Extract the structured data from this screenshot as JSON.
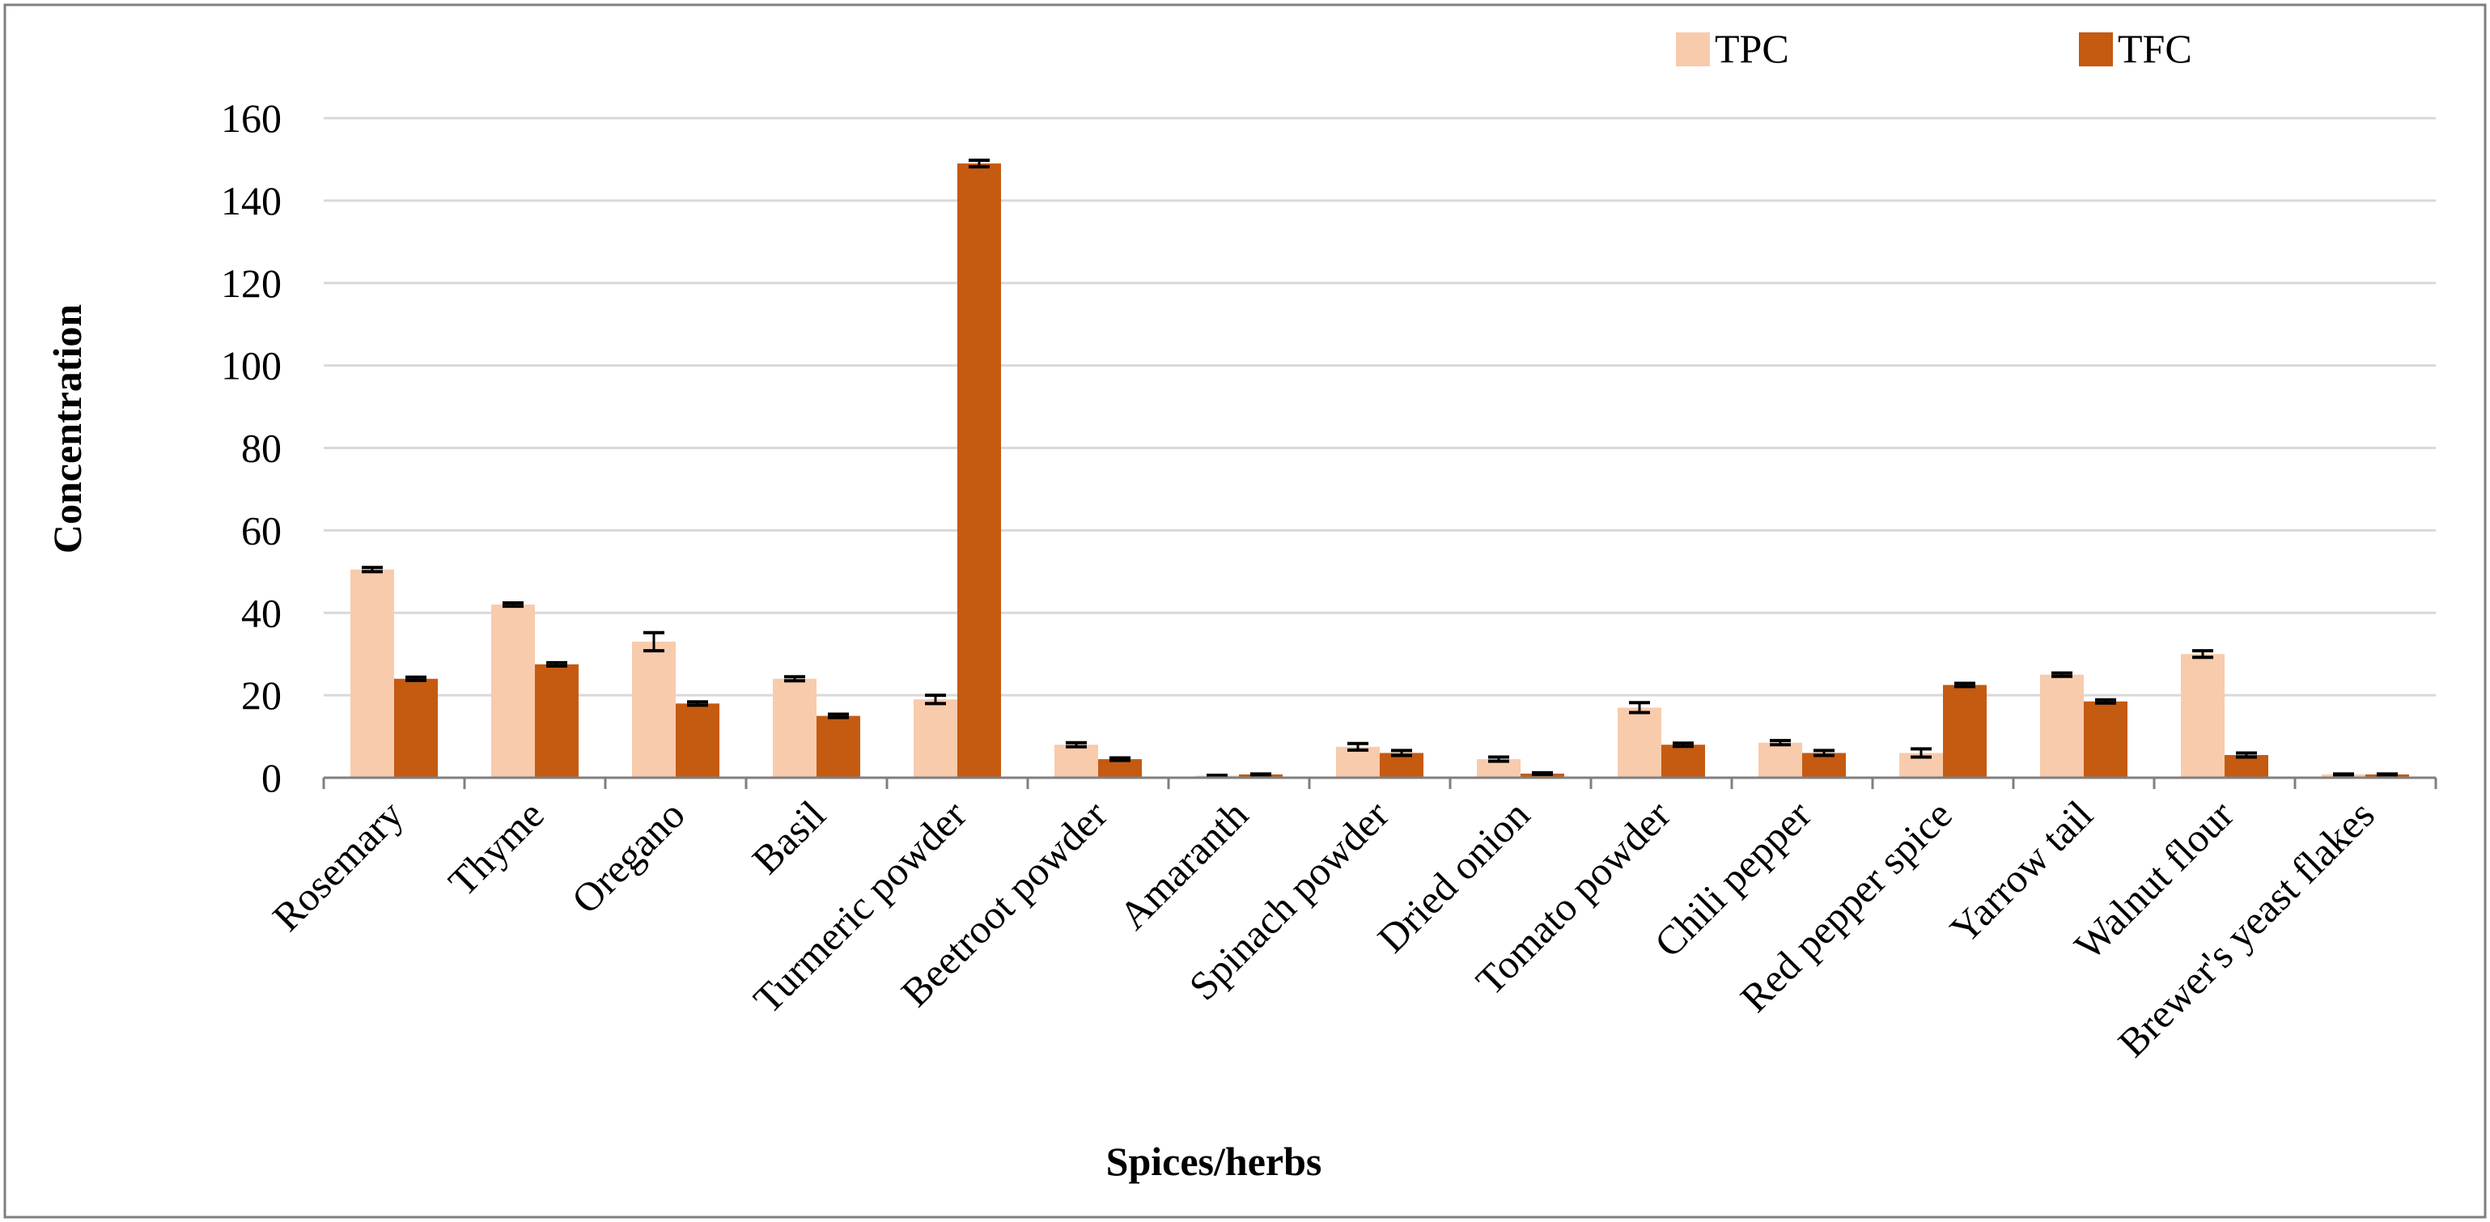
{
  "chart_data": {
    "type": "bar",
    "title": "",
    "xlabel": "Spices/herbs",
    "ylabel": "Concentration",
    "ylim": [
      0,
      160
    ],
    "yticks": [
      0,
      20,
      40,
      60,
      80,
      100,
      120,
      140,
      160
    ],
    "grid": "horizontal",
    "legend_position": "top-right",
    "categories": [
      "Rosemary",
      "Thyme",
      "Oregano",
      "Basil",
      "Turmeric powder",
      "Beetroot powder",
      "Amaranth",
      "Spinach powder",
      "Dried onion",
      "Tomato powder",
      "Chili pepper",
      "Red pepper spice",
      "Yarrow tail",
      "Walnut flour",
      "Brewer's yeast flakes"
    ],
    "series": [
      {
        "name": "TPC",
        "color": "#F8CBAD",
        "values": [
          50.5,
          42,
          33,
          24,
          19,
          8,
          0.5,
          7.5,
          4.5,
          17,
          8.5,
          6,
          25,
          30,
          0.8
        ],
        "errors": [
          0.5,
          0.4,
          2.2,
          0.5,
          1.0,
          0.5,
          0.1,
          0.8,
          0.5,
          1.2,
          0.5,
          1.0,
          0.4,
          0.8,
          0.1
        ]
      },
      {
        "name": "TFC",
        "color": "#C55A11",
        "values": [
          24,
          27.5,
          18,
          15,
          149,
          4.5,
          0.8,
          6,
          1,
          8,
          6,
          22.5,
          18.5,
          5.5,
          0.8
        ],
        "errors": [
          0.4,
          0.4,
          0.4,
          0.4,
          0.8,
          0.3,
          0.1,
          0.6,
          0.2,
          0.4,
          0.6,
          0.4,
          0.4,
          0.5,
          0.1
        ]
      }
    ]
  },
  "style": {
    "grid_color": "#d9d9d9",
    "axis_color": "#7f7f7f",
    "frame_color": "#7f7f7f",
    "error_bar_color": "#000000"
  }
}
